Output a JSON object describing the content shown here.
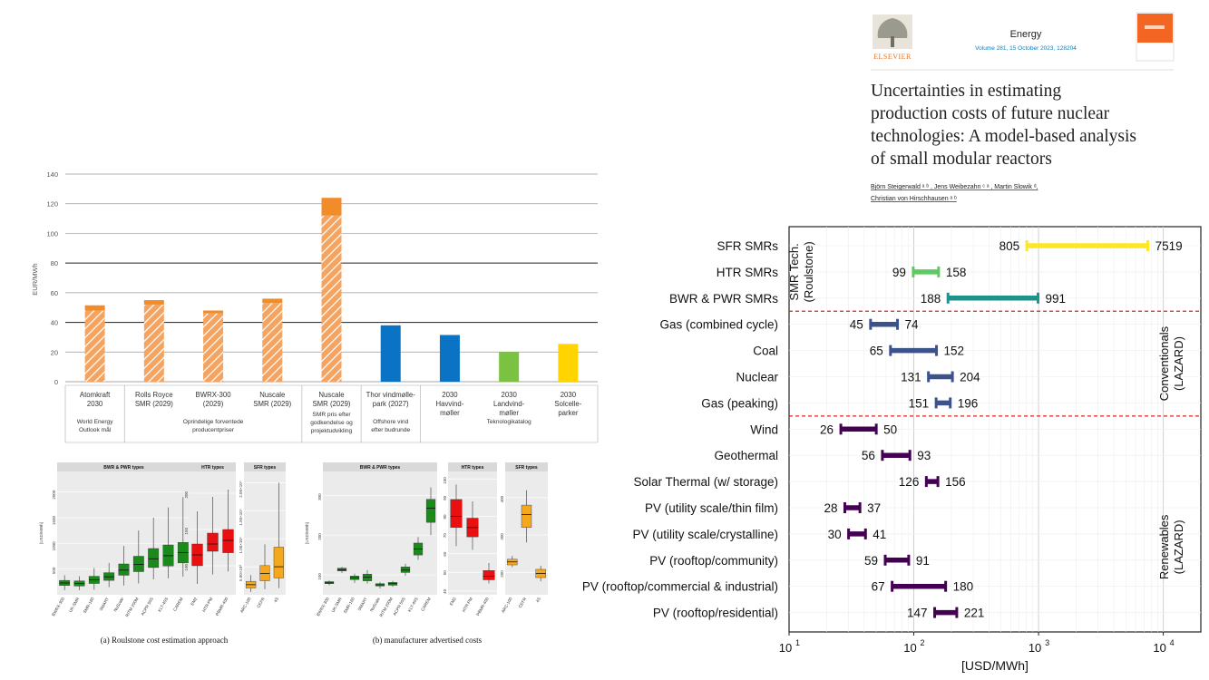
{
  "chart_data": [
    {
      "type": "bar",
      "ylabel": "EUR/MWh",
      "ylim": [
        0,
        140
      ],
      "yticks": [
        0,
        20,
        40,
        60,
        80,
        100,
        120,
        140
      ],
      "categories": [
        {
          "lines": [
            "Atomkraft",
            "2030"
          ],
          "base": 48,
          "top": 51.5,
          "style": "hatch-orange"
        },
        {
          "lines": [
            "Rolls Royce",
            "SMR (2029)"
          ],
          "base": 52,
          "top": 55,
          "style": "hatch-orange"
        },
        {
          "lines": [
            "BWRX-300",
            "(2029)"
          ],
          "base": 46,
          "top": 48,
          "style": "hatch-orange"
        },
        {
          "lines": [
            "Nuscale",
            "SMR (2029)"
          ],
          "base": 53,
          "top": 56,
          "style": "hatch-orange"
        },
        {
          "lines": [
            "Nuscale",
            "SMR (2029)"
          ],
          "base": 112,
          "top": 124,
          "style": "hatch-orange"
        },
        {
          "lines": [
            "Thor vindmølle-",
            "park (2027)"
          ],
          "base": 38,
          "top": 38,
          "style": "blue"
        },
        {
          "lines": [
            "2030",
            "Havvind-",
            "møller"
          ],
          "base": 31.5,
          "top": 31.5,
          "style": "blue"
        },
        {
          "lines": [
            "2030",
            "Landvind-",
            "møller"
          ],
          "base": 20,
          "top": 20,
          "style": "green"
        },
        {
          "lines": [
            "2030",
            "Solcelle-",
            "parker"
          ],
          "base": 25.5,
          "top": 25.5,
          "style": "yellow"
        }
      ],
      "groups": [
        {
          "lines": [
            "World Energy",
            "Outlook mål"
          ]
        },
        {
          "lines": [
            "Oprindelige forventede",
            "producentpriser"
          ]
        },
        {
          "lines": [
            "SMR pris efter",
            "godkendelse og",
            "projektudvikling"
          ]
        },
        {
          "lines": [
            "Offshore vind",
            "efter budrunde"
          ]
        },
        {
          "lines": [
            "Teknologikatalog"
          ]
        }
      ],
      "colors": {
        "orange": "#f28c28",
        "blue": "#0a73c4",
        "green": "#7cc242",
        "yellow": "#ffd400"
      }
    },
    {
      "type": "bar",
      "title": "Uncertainties in estimating production costs of future nuclear technologies: A model-based analysis of small modular reactors",
      "xlabel": "[USD/MWh]",
      "xscale": "log",
      "xlim": [
        10,
        20000
      ],
      "xticks": [
        {
          "base": "10",
          "exp": "1"
        },
        {
          "base": "10",
          "exp": "2"
        },
        {
          "base": "10",
          "exp": "3"
        },
        {
          "base": "10",
          "exp": "4"
        }
      ],
      "rows": [
        {
          "label": "SFR SMRs",
          "min": 805,
          "max": 7519,
          "color": "#fde725"
        },
        {
          "label": "HTR SMRs",
          "min": 99,
          "max": 158,
          "color": "#5ec962"
        },
        {
          "label": "BWR & PWR SMRs",
          "min": 188,
          "max": 991,
          "color": "#21918c"
        },
        {
          "label": "Gas (combined cycle)",
          "min": 45,
          "max": 74,
          "color": "#3b528b"
        },
        {
          "label": "Coal",
          "min": 65,
          "max": 152,
          "color": "#3b528b"
        },
        {
          "label": "Nuclear",
          "min": 131,
          "max": 204,
          "color": "#3b528b"
        },
        {
          "label": "Gas (peaking)",
          "min": 151,
          "max": 196,
          "color": "#3b528b"
        },
        {
          "label": "Wind",
          "min": 26,
          "max": 50,
          "color": "#440154"
        },
        {
          "label": "Geothermal",
          "min": 56,
          "max": 93,
          "color": "#440154"
        },
        {
          "label": "Solar Thermal (w/ storage)",
          "min": 126,
          "max": 156,
          "color": "#440154"
        },
        {
          "label": "PV (utility scale/thin film)",
          "min": 28,
          "max": 37,
          "color": "#440154"
        },
        {
          "label": "PV (utility scale/crystalline)",
          "min": 30,
          "max": 41,
          "color": "#440154"
        },
        {
          "label": "PV (rooftop/community)",
          "min": 59,
          "max": 91,
          "color": "#440154"
        },
        {
          "label": "PV (rooftop/commercial & industrial)",
          "min": 67,
          "max": 180,
          "color": "#440154"
        },
        {
          "label": "PV (rooftop/residential)",
          "min": 147,
          "max": 221,
          "color": "#440154"
        }
      ],
      "group_labels": [
        {
          "lines": [
            "SMR Tech.",
            "(Roulstone)"
          ]
        },
        {
          "lines": [
            "Conventionals",
            "(LAZARD)"
          ]
        },
        {
          "lines": [
            "Renewables",
            "(LAZARD)"
          ]
        }
      ]
    },
    {
      "type": "box",
      "caption": "(a) Roulstone cost estimation approach",
      "panels": [
        {
          "title": "BWR & PWR types",
          "ylabel": "[USD/MWh]",
          "ticks": [
            "500",
            "1000",
            "1500",
            "2000"
          ],
          "ylim": [
            0,
            2400
          ],
          "categories": [
            "BWRX-300",
            "UK-SMR",
            "SMR-160",
            "SMART",
            "NuScale",
            "RITM 200M",
            "ACPR 50S",
            "KLT-40S",
            "CAREM"
          ],
          "boxes": [
            [
              90,
              180,
              230,
              280,
              380
            ],
            [
              90,
              170,
              220,
              270,
              360
            ],
            [
              100,
              220,
              290,
              360,
              520
            ],
            [
              150,
              280,
              350,
              430,
              620
            ],
            [
              180,
              380,
              480,
              600,
              950
            ],
            [
              220,
              450,
              590,
              750,
              1250
            ],
            [
              300,
              530,
              700,
              900,
              1500
            ],
            [
              320,
              560,
              760,
              970,
              1700
            ],
            [
              350,
              620,
              820,
              1020,
              1900
            ]
          ],
          "color": "#1a8a1a"
        },
        {
          "title": "HTR types",
          "ticks": [
            "100",
            "150",
            "200"
          ],
          "ylim": [
            60,
            230
          ],
          "categories": [
            "EM2",
            "HTR-PM",
            "PBMR-400"
          ],
          "boxes": [
            [
              75,
              100,
              115,
              130,
              175
            ],
            [
              88,
              120,
              130,
              145,
              195
            ],
            [
              92,
              118,
              135,
              150,
              205
            ]
          ],
          "color": "#e81010"
        },
        {
          "title": "SFR types",
          "ticks": [
            "5.00×10³",
            "1.00×10⁴",
            "1.50×10⁴",
            "2.00×10⁴"
          ],
          "ylim": [
            0,
            22000
          ],
          "categories": [
            "ARC-100",
            "CEFR",
            "4S"
          ],
          "boxes": [
            [
              500,
              1200,
              1800,
              2400,
              3500
            ],
            [
              1000,
              2500,
              3800,
              5200,
              9000
            ],
            [
              1200,
              3000,
              5000,
              8500,
              20000
            ]
          ],
          "color": "#f5a81d"
        }
      ]
    },
    {
      "type": "box",
      "caption": "(b) manufacturer advertised costs",
      "panels": [
        {
          "title": "BWR & PWR types",
          "ylabel": "[USD/MWh]",
          "ticks": [
            "100",
            "200",
            "300"
          ],
          "ylim": [
            50,
            360
          ],
          "categories": [
            "BWRX-300",
            "UK-SMR",
            "SMR-160",
            "SMART",
            "NuScale",
            "RITM 200M",
            "ACPR 50S",
            "KLT-40S",
            "CAREM"
          ],
          "boxes": [
            [
              74,
              78,
              80,
              83,
              86
            ],
            [
              105,
              110,
              113,
              117,
              120
            ],
            [
              80,
              88,
              93,
              97,
              103
            ],
            [
              78,
              85,
              94,
              102,
              112
            ],
            [
              66,
              72,
              75,
              78,
              82
            ],
            [
              70,
              74,
              78,
              81,
              85
            ],
            [
              98,
              106,
              112,
              120,
              128
            ],
            [
              138,
              150,
              165,
              180,
              195
            ],
            [
              200,
              232,
              268,
              290,
              320
            ]
          ],
          "color": "#1a8a1a"
        },
        {
          "title": "HTR types",
          "ticks": [
            "40",
            "50",
            "60",
            "70",
            "80",
            "90",
            "100"
          ],
          "ylim": [
            38,
            104
          ],
          "categories": [
            "EM2",
            "HTR-PM",
            "PBMR-400"
          ],
          "boxes": [
            [
              64,
              74,
              80,
              89,
              97
            ],
            [
              62,
              69,
              74,
              79,
              88
            ],
            [
              44,
              46,
              48,
              51,
              55
            ]
          ],
          "color": "#e81010"
        },
        {
          "title": "SFR types",
          "ticks": [
            "200",
            "300",
            "400"
          ],
          "ylim": [
            140,
            470
          ],
          "categories": [
            "ARC-100",
            "CEFR",
            "4S"
          ],
          "boxes": [
            [
              214,
              220,
              228,
              235,
              244
            ],
            [
              280,
              320,
              355,
              380,
              420
            ],
            [
              176,
              186,
              197,
              208,
              218
            ]
          ],
          "color": "#f5a81d"
        }
      ]
    }
  ],
  "article": {
    "journal": "Energy",
    "volume": "Volume 281, 15 October 2023, 128204",
    "publisher": "ELSEVIER",
    "title_lines": [
      "Uncertainties in estimating",
      "production costs of future nuclear",
      "technologies: A model-based analysis",
      "of small modular reactors"
    ],
    "authors_line1": "Björn Steigerwald ᵃ ᵇ   ,  Jens Weibezahn ᶜ ᵃ   ,  Martin Slowik ᵈ,",
    "authors_line2": "Christian von Hirschhausen ᵃ ᵇ"
  }
}
